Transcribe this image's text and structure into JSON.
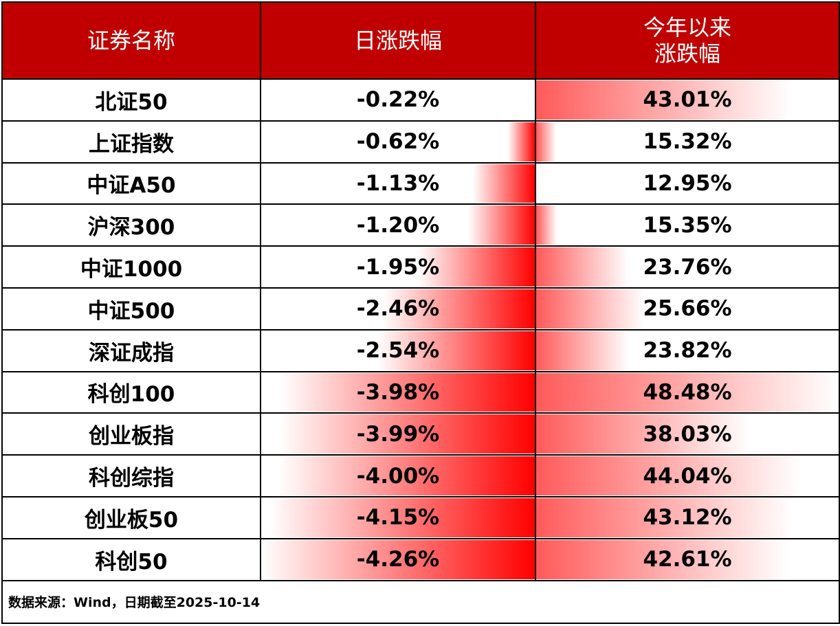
{
  "table": {
    "header": [
      "证券名称",
      "日涨跌幅",
      "今年以来\n涨跌幅"
    ],
    "rows": [
      [
        "北证50",
        "-0.22%",
        "43.01%"
      ],
      [
        "上证指数",
        "-0.62%",
        "15.32%"
      ],
      [
        "中证A50",
        "-1.13%",
        "12.95%"
      ],
      [
        "沪深300",
        "-1.20%",
        "15.35%"
      ],
      [
        "中证1000",
        "-1.95%",
        "23.76%"
      ],
      [
        "中证500",
        "-2.46%",
        "25.66%"
      ],
      [
        "深证成指",
        "-2.54%",
        "23.82%"
      ],
      [
        "科创100",
        "-3.98%",
        "48.48%"
      ],
      [
        "创业板指",
        "-3.99%",
        "38.03%"
      ],
      [
        "科创综指",
        "-4.00%",
        "44.04%"
      ],
      [
        "创业板50",
        "-4.15%",
        "43.12%"
      ],
      [
        "科创50",
        "-4.26%",
        "42.61%"
      ]
    ],
    "footer": "数据来源：Wind，日期截至2025-10-14"
  }
}
